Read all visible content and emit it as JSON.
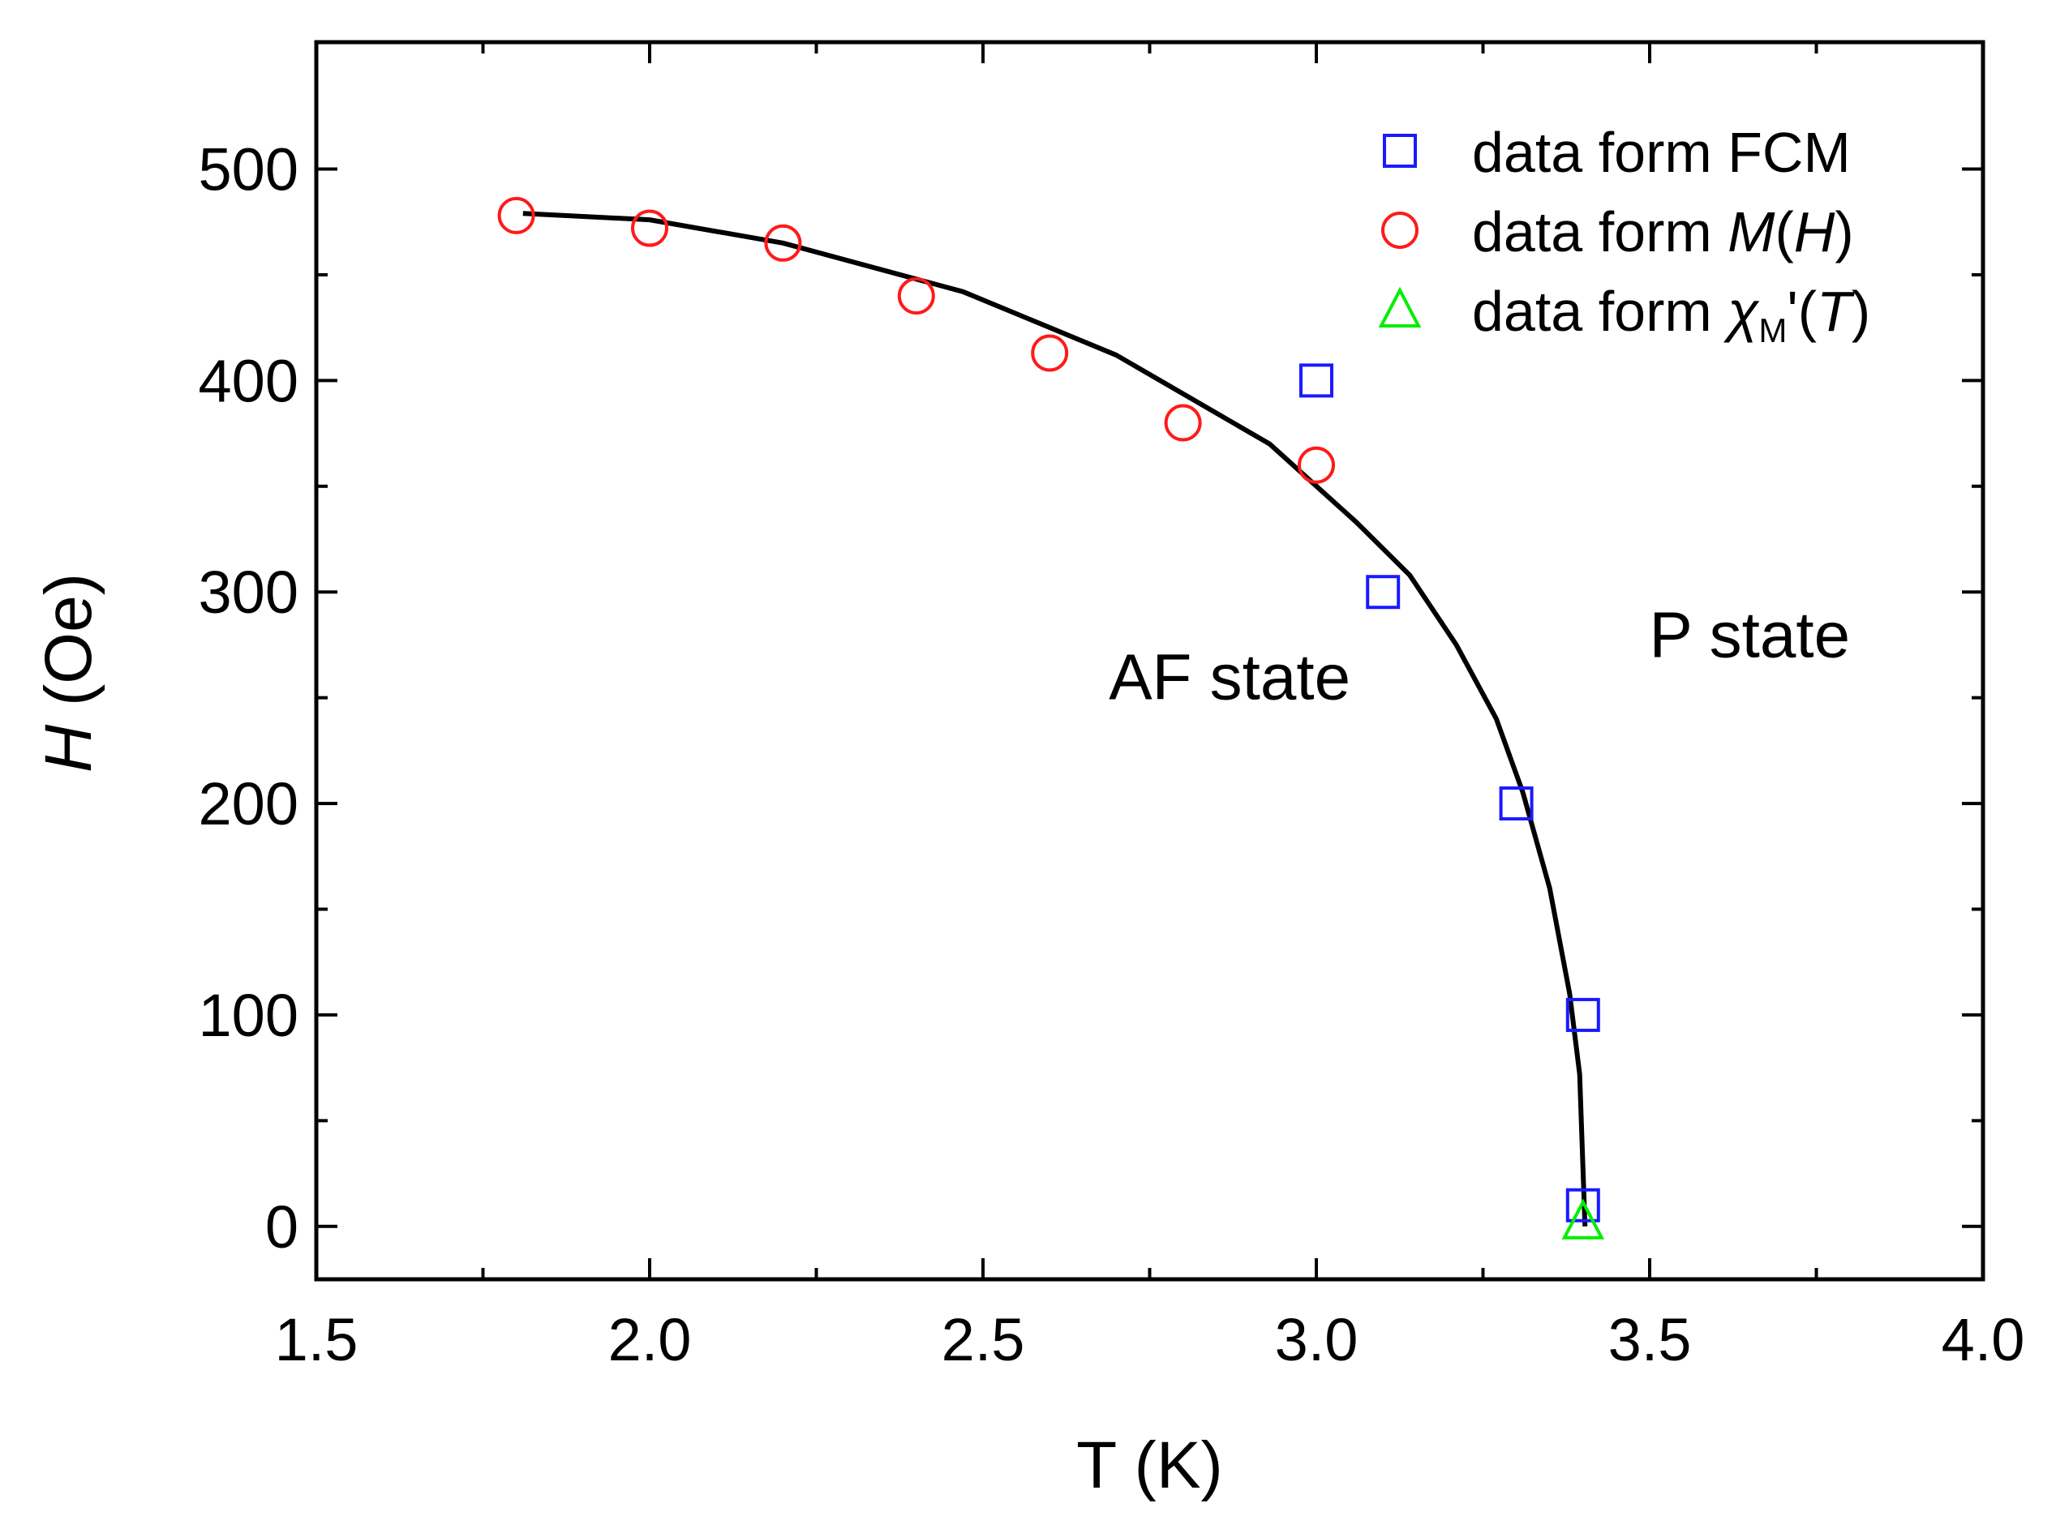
{
  "chart_data": {
    "type": "scatter",
    "title": "",
    "xlabel": "T (K)",
    "ylabel_italic": "H",
    "ylabel_rest": " (Oe)",
    "xlim": [
      1.5,
      4.0
    ],
    "ylim": [
      -25,
      560
    ],
    "x_ticks": [
      1.5,
      2.0,
      2.5,
      3.0,
      3.5,
      4.0
    ],
    "x_tick_labels": [
      "1.5",
      "2.0",
      "2.5",
      "3.0",
      "3.5",
      "4.0"
    ],
    "x_minor_ticks": [
      1.75,
      2.25,
      2.75,
      3.25,
      3.75
    ],
    "y_ticks": [
      0,
      100,
      200,
      300,
      400,
      500
    ],
    "y_tick_labels": [
      "0",
      "100",
      "200",
      "300",
      "400",
      "500"
    ],
    "y_minor_ticks": [
      50,
      150,
      250,
      350,
      450
    ],
    "grid": false,
    "legend_position": "top-right",
    "series": [
      {
        "name": "data form FCM",
        "marker": "square",
        "color": "#1a1aff",
        "x": [
          3.0,
          3.1,
          3.3,
          3.4,
          3.4
        ],
        "y": [
          400,
          300,
          200,
          100,
          10
        ]
      },
      {
        "name": "data form M(H)",
        "marker": "circle",
        "color": "#ff1a1a",
        "x": [
          1.8,
          2.0,
          2.2,
          2.4,
          2.6,
          2.8,
          3.0
        ],
        "y": [
          478,
          472,
          465,
          440,
          413,
          380,
          360
        ]
      },
      {
        "name": "data form χM'(T)",
        "marker": "triangle",
        "color": "#00ee00",
        "x": [
          3.4
        ],
        "y": [
          0
        ]
      }
    ],
    "fit_line": {
      "color": "#000000",
      "x": [
        1.81,
        2.0,
        2.2,
        2.47,
        2.7,
        2.93,
        3.06,
        3.14,
        3.21,
        3.27,
        3.31,
        3.35,
        3.38,
        3.395,
        3.403
      ],
      "y": [
        479,
        476,
        465,
        442,
        412,
        370,
        333,
        308,
        275,
        240,
        205,
        160,
        110,
        72,
        0
      ]
    },
    "legend": {
      "entries": [
        {
          "prefix": "data form ",
          "main": "FCM",
          "italic": "",
          "sub": "",
          "suffix": ""
        },
        {
          "prefix": "data form ",
          "main": "",
          "italic": "M",
          "paren": "(",
          "italic2": "H",
          "close": ")"
        },
        {
          "prefix": "data form ",
          "main": "",
          "italic": "χ",
          "sub": "M",
          "prime": "'(",
          "italic2": "T",
          "close": ")"
        }
      ]
    },
    "annotations": [
      {
        "text": "AF state",
        "x": 2.87,
        "y": 260
      },
      {
        "text": "P state",
        "x": 3.65,
        "y": 280
      }
    ]
  }
}
